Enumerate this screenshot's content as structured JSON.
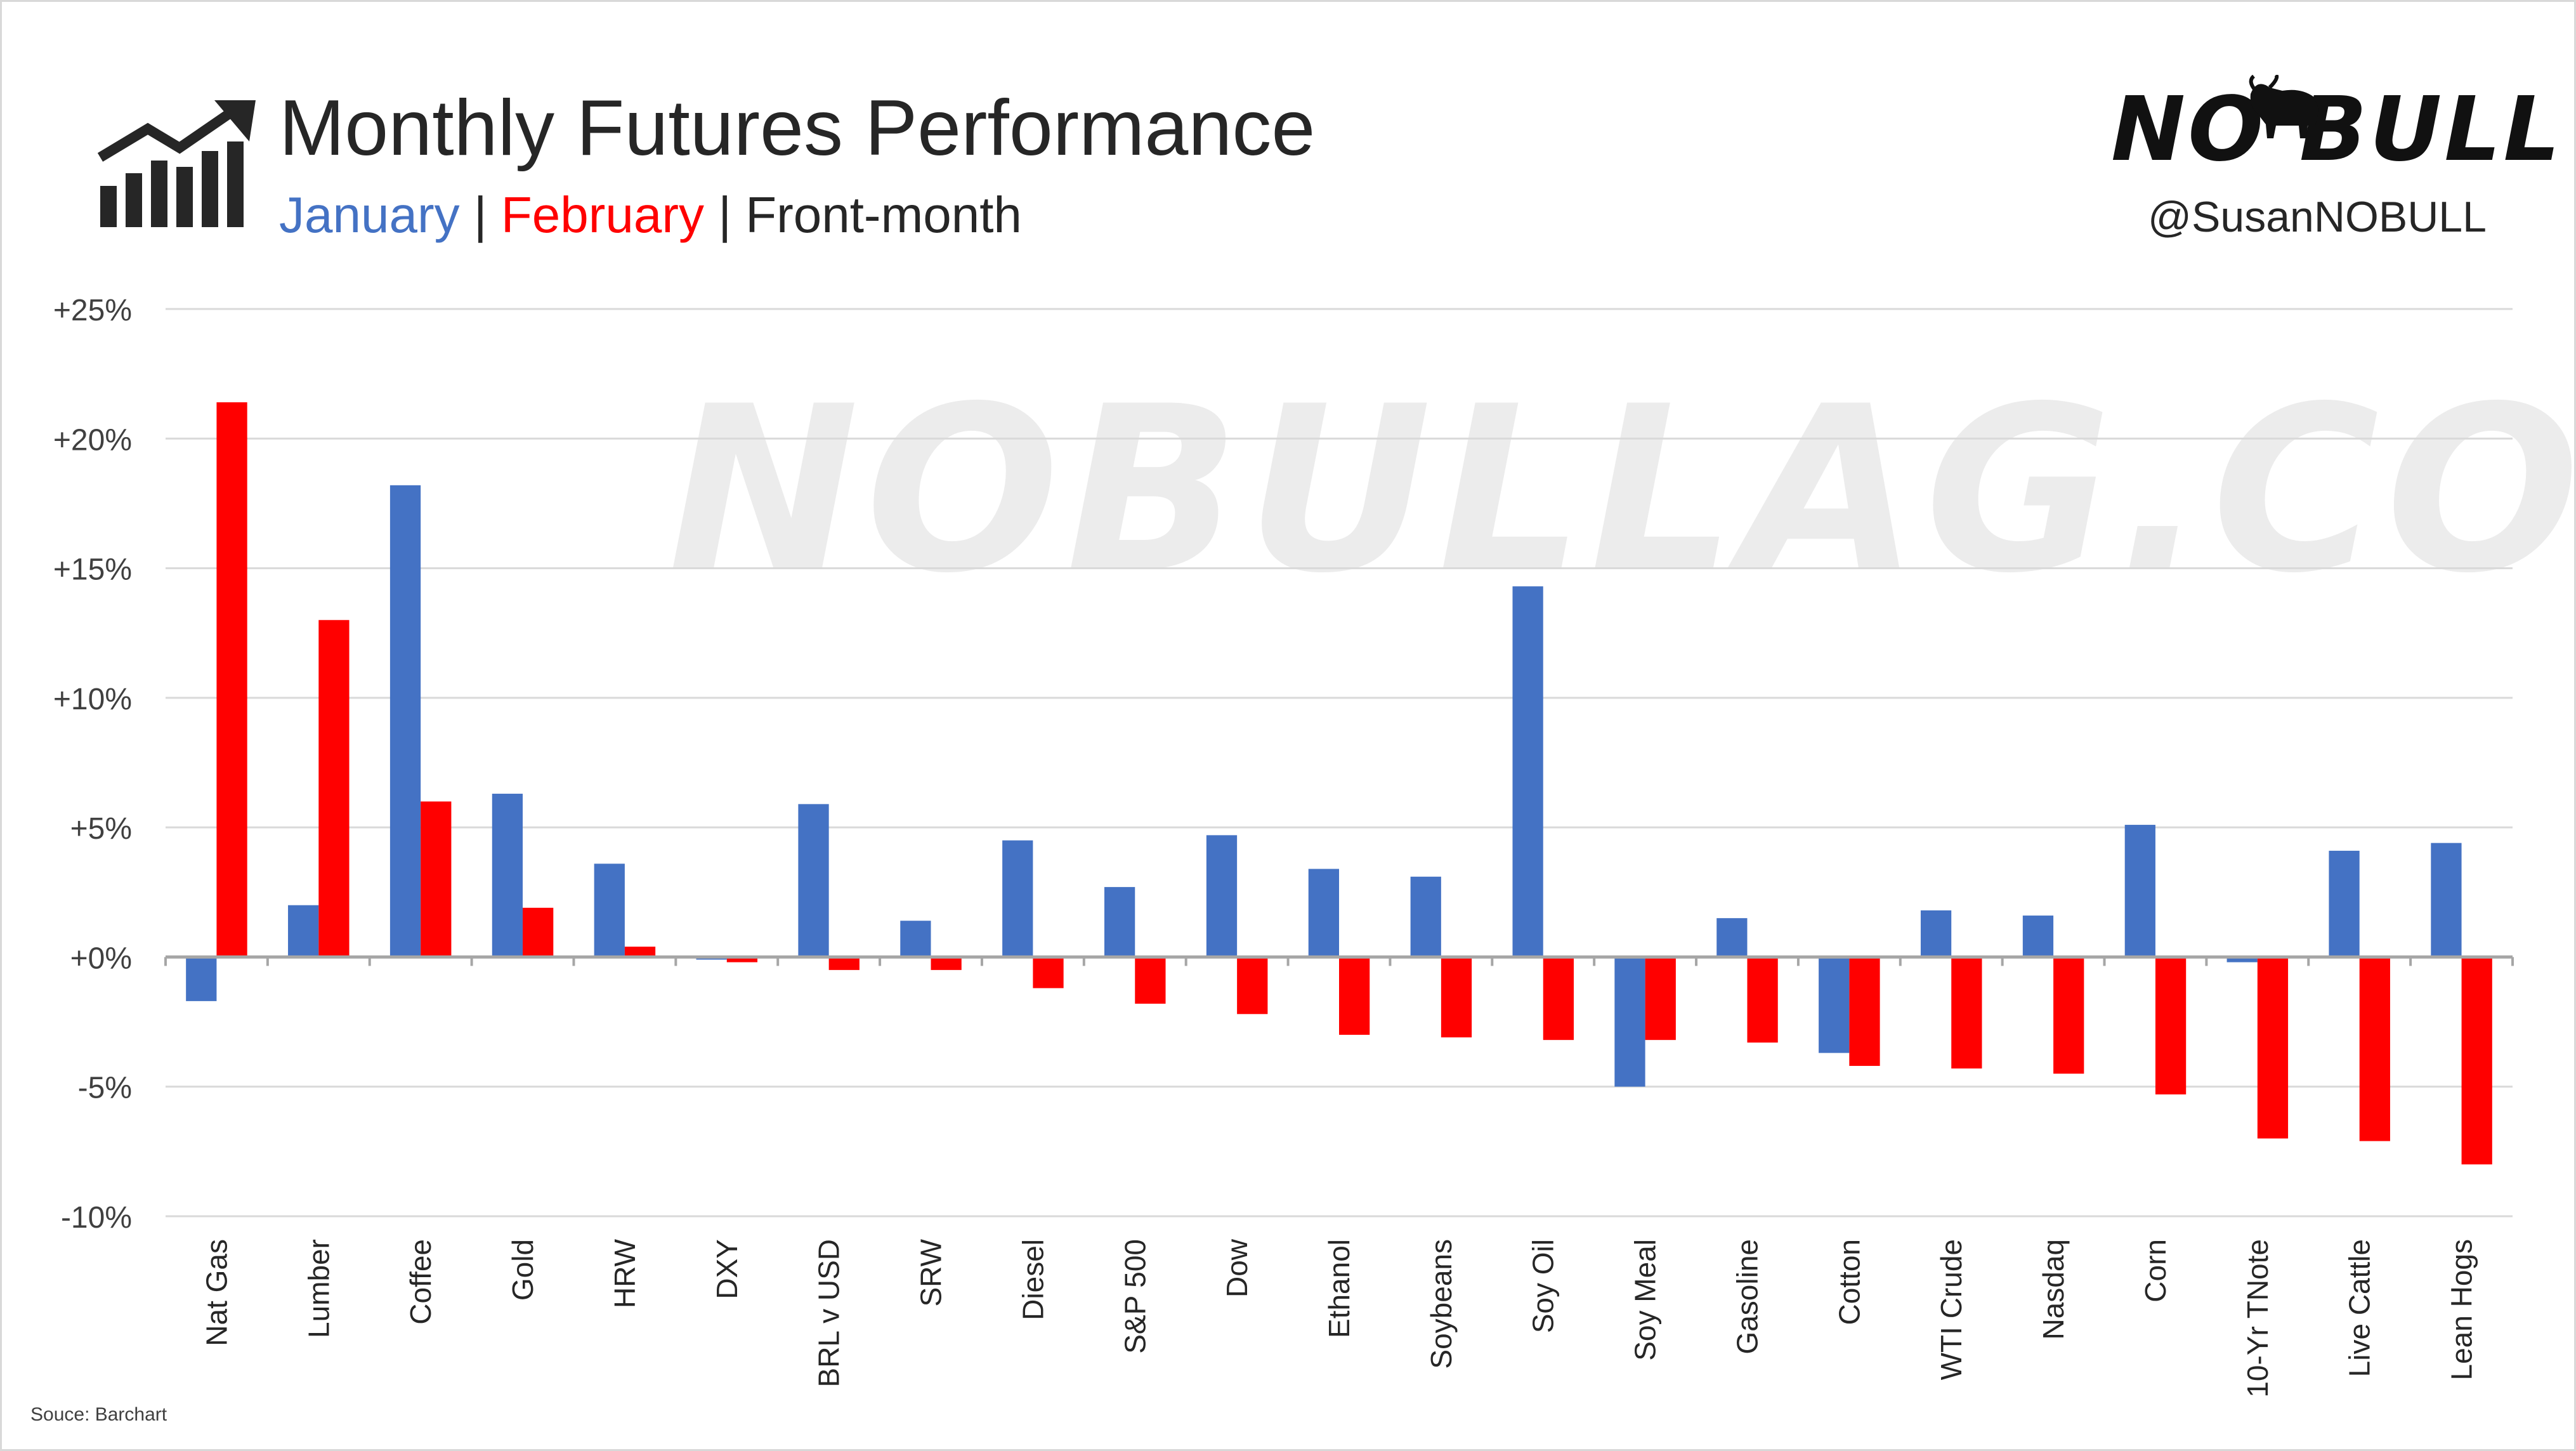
{
  "header": {
    "title": "Monthly Futures Performance",
    "subtitle_january": "January",
    "subtitle_sep1": " | ",
    "subtitle_february": "February",
    "subtitle_sep2": " | ",
    "subtitle_front": "Front-month"
  },
  "brand": {
    "logo_text": "NO BULL",
    "handle": "@SusanNOBULL",
    "watermark": "NOBULLAG.COM"
  },
  "source": "Souce: Barchart",
  "colors": {
    "january": "#4472c4",
    "february": "#ff0000",
    "grid": "#d9d9d9",
    "text": "#262626"
  },
  "icons": {
    "chart_icon": "bar-chart-trend-icon",
    "bull_icon": "bull-icon"
  },
  "chart_data": {
    "type": "bar",
    "categories": [
      "Nat Gas",
      "Lumber",
      "Coffee",
      "Gold",
      "HRW",
      "DXY",
      "BRL v USD",
      "SRW",
      "Diesel",
      "S&P 500",
      "Dow",
      "Ethanol",
      "Soybeans",
      "Soy Oil",
      "Soy Meal",
      "Gasoline",
      "Cotton",
      "WTI Crude",
      "Nasdaq",
      "Corn",
      "10-Yr TNote",
      "Live Cattle",
      "Lean Hogs"
    ],
    "series": [
      {
        "name": "January",
        "color": "#4472c4",
        "values": [
          -1.7,
          2.0,
          18.2,
          6.3,
          3.6,
          -0.1,
          5.9,
          1.4,
          4.5,
          2.7,
          4.7,
          3.4,
          3.1,
          14.3,
          -5.0,
          1.5,
          -3.7,
          1.8,
          1.6,
          5.1,
          -0.2,
          4.1,
          4.4
        ]
      },
      {
        "name": "February",
        "color": "#ff0000",
        "values": [
          21.4,
          13.0,
          6.0,
          1.9,
          0.4,
          -0.2,
          -0.5,
          -0.5,
          -1.2,
          -1.8,
          -2.2,
          -3.0,
          -3.1,
          -3.2,
          -3.2,
          -3.3,
          -4.2,
          -4.3,
          -4.5,
          -5.3,
          -7.0,
          -7.1,
          -8.0
        ]
      }
    ],
    "yticks": [
      25,
      20,
      15,
      10,
      5,
      0,
      -5,
      -10
    ],
    "ytick_labels": [
      "+25%",
      "+20%",
      "+15%",
      "+10%",
      "+5%",
      "+0%",
      "-5%",
      "-10%"
    ],
    "ylim": [
      -10,
      25
    ],
    "grid": true,
    "legend": "subtitle"
  }
}
